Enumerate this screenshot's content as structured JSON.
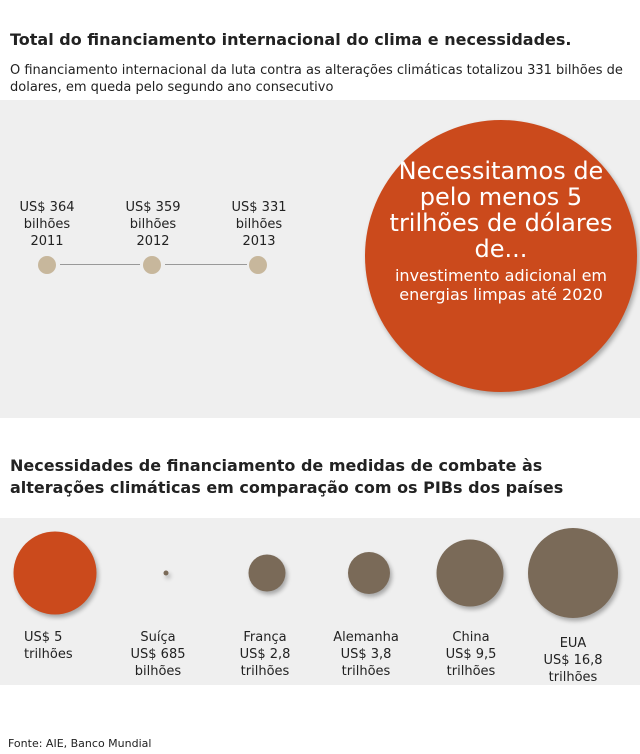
{
  "title": "Total do financiamento internacional do clima e necessidades.",
  "subtitle": "O financiamento internacional da luta contra as alterações climáticas totalizou 331 bilhões de dolares, em queda pelo segundo ano consecutivo",
  "timeline": [
    {
      "amount": "US$ 364",
      "unit": "bilhões",
      "year": "2011"
    },
    {
      "amount": "US$ 359",
      "unit": "bilhões",
      "year": "2012"
    },
    {
      "amount": "US$ 331",
      "unit": "bilhões",
      "year": "2013"
    }
  ],
  "callout": {
    "headline": "Necessitamos de pelo menos 5 trilhões de dólares de...",
    "detail": "investimento adicional em energias limpas até 2020",
    "color": "#cb4a1c"
  },
  "chart_data": {
    "type": "bubble",
    "title": "Necessidades de financiamento de medidas de combate às alterações climáticas em comparação com os PIBs dos países",
    "items": [
      {
        "name": "",
        "value_text": "US$ 5",
        "unit": "trilhões",
        "value_trillions": 5,
        "color": "#cb4a1c"
      },
      {
        "name": "Suíça",
        "value_text": "US$ 685",
        "unit": "bilhões",
        "value_trillions": 0.685,
        "color": "#7a6a58"
      },
      {
        "name": "França",
        "value_text": "US$ 2,8",
        "unit": "trilhões",
        "value_trillions": 2.8,
        "color": "#7a6a58"
      },
      {
        "name": "Alemanha",
        "value_text": "US$ 3,8",
        "unit": "trilhões",
        "value_trillions": 3.8,
        "color": "#7a6a58"
      },
      {
        "name": "China",
        "value_text": "US$ 9,5",
        "unit": "trilhões",
        "value_trillions": 9.5,
        "color": "#7a6a58"
      },
      {
        "name": "EUA",
        "value_text": "US$ 16,8",
        "unit": "trilhões",
        "value_trillions": 16.8,
        "color": "#7a6a58"
      }
    ]
  },
  "source": "Fonte: AIE, Banco Mundial"
}
